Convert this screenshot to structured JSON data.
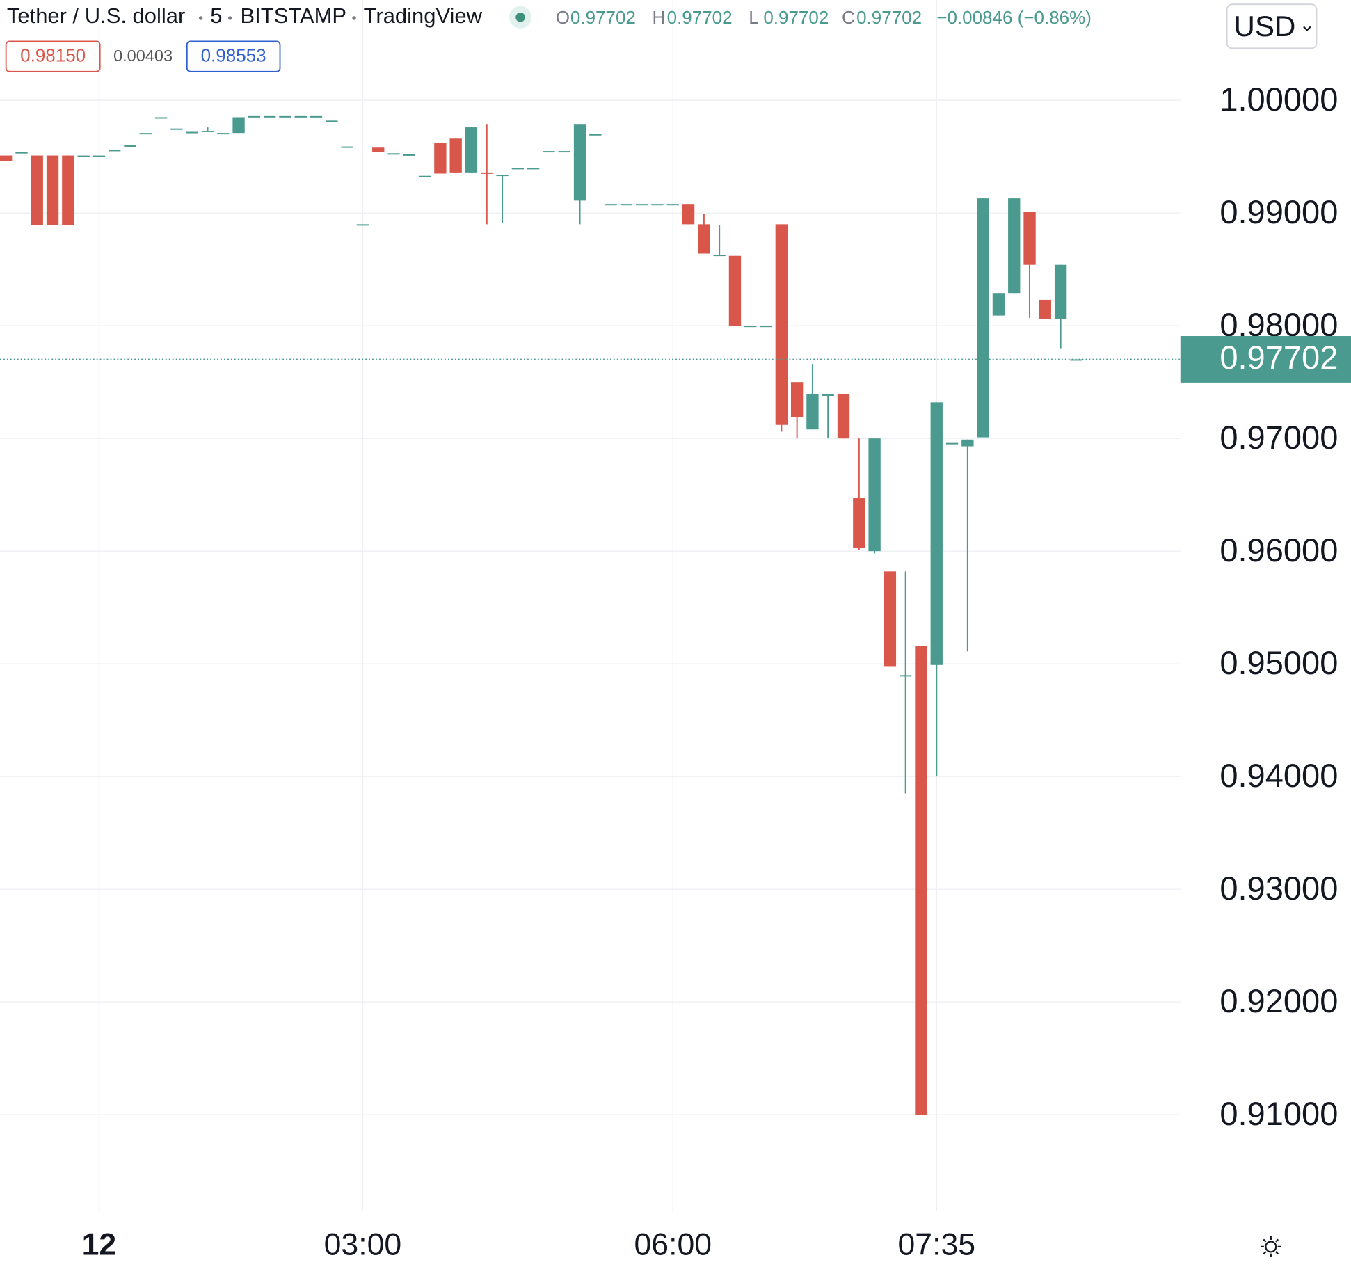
{
  "chart_data": {
    "type": "candlestick",
    "title": "Tether / U.S. dollar",
    "interval": "5",
    "exchange": "BITSTAMP",
    "source": "TradingView",
    "ohlc": [
      {
        "label": "O",
        "value": 0.97702
      },
      {
        "label": "H",
        "value": 0.97702
      },
      {
        "label": "L",
        "value": 0.97702
      },
      {
        "label": "C",
        "value": 0.97702
      }
    ],
    "change": "−0.00846 (−0.86%)",
    "sell": "0.98150",
    "spread": "0.00403",
    "buy": "0.98553",
    "currency": "USD",
    "last_price": 0.97702,
    "up_color": "#4a9a8f",
    "down_color": "#d9574a",
    "grid": true,
    "ylim": [
      0.9015,
      1.0089
    ],
    "yticks": [
      {
        "value": 1,
        "label": "1.00000"
      },
      {
        "value": 0.99,
        "label": "0.99000"
      },
      {
        "value": 0.98,
        "label": "0.98000"
      },
      {
        "value": 0.97,
        "label": "0.97000"
      },
      {
        "value": 0.96,
        "label": "0.96000"
      },
      {
        "value": 0.95,
        "label": "0.95000"
      },
      {
        "value": 0.94,
        "label": "0.94000"
      },
      {
        "value": 0.93,
        "label": "0.93000"
      },
      {
        "value": 0.92,
        "label": "0.92000"
      },
      {
        "value": 0.91,
        "label": "0.91000"
      }
    ],
    "categories": [
      null,
      null,
      null,
      null,
      null,
      null,
      "12",
      null,
      null,
      null,
      null,
      null,
      null,
      null,
      null,
      null,
      null,
      null,
      null,
      null,
      null,
      null,
      null,
      "03:00",
      null,
      null,
      null,
      null,
      null,
      null,
      null,
      null,
      null,
      null,
      null,
      null,
      null,
      null,
      null,
      null,
      null,
      null,
      null,
      "06:00",
      null,
      null,
      null,
      null,
      null,
      null,
      null,
      null,
      null,
      null,
      null,
      null,
      null,
      null,
      null,
      null,
      "07:35",
      null,
      null,
      null,
      null,
      null,
      null,
      null,
      null,
      null
    ],
    "open": [
      0.9951,
      0.9954,
      0.9951,
      0.9951,
      0.9951,
      0.9951,
      0.9951,
      0.9956,
      0.996,
      0.9971,
      0.9985,
      0.9975,
      0.9972,
      0.9973,
      0.9971,
      0.9971,
      0.9986,
      0.9986,
      0.9986,
      0.9986,
      0.9986,
      0.9982,
      0.9959,
      0.989,
      0.9958,
      0.9953,
      0.9952,
      0.9933,
      0.9962,
      0.9966,
      0.9936,
      0.9936,
      0.9934,
      0.994,
      0.994,
      0.9955,
      0.9955,
      0.9911,
      0.997,
      0.9908,
      0.9908,
      0.9908,
      0.9908,
      0.9908,
      0.9908,
      0.989,
      0.9863,
      0.9862,
      0.98,
      0.98,
      0.989,
      0.975,
      0.9708,
      0.9739,
      0.9739,
      0.9647,
      0.96,
      0.9582,
      0.949,
      0.9516,
      0.9499,
      0.9696,
      0.9693,
      0.9701,
      0.9809,
      0.9829,
      0.9901,
      0.9823,
      0.9806,
      0.97702
    ],
    "high": [
      0.9951,
      0.9954,
      0.9951,
      0.9951,
      0.9951,
      0.9951,
      0.9951,
      0.9956,
      0.996,
      0.9971,
      0.9985,
      0.9975,
      0.9972,
      0.9976,
      0.9971,
      0.9985,
      0.9986,
      0.9986,
      0.9986,
      0.9986,
      0.9986,
      0.9982,
      0.9959,
      0.989,
      0.9958,
      0.9953,
      0.9952,
      0.9933,
      0.9962,
      0.9966,
      0.9976,
      0.9979,
      0.9934,
      0.994,
      0.994,
      0.9955,
      0.9955,
      0.9979,
      0.997,
      0.9908,
      0.9908,
      0.9908,
      0.9908,
      0.9908,
      0.9908,
      0.9899,
      0.9889,
      0.9862,
      0.98,
      0.98,
      0.989,
      0.975,
      0.9766,
      0.9739,
      0.9739,
      0.97,
      0.97,
      0.9582,
      0.9582,
      0.9516,
      0.9732,
      0.9696,
      0.9699,
      0.9913,
      0.9829,
      0.9913,
      0.9901,
      0.9823,
      0.9854,
      0.97702
    ],
    "low": [
      0.9946,
      0.9954,
      0.9889,
      0.9889,
      0.9889,
      0.9951,
      0.9951,
      0.9956,
      0.996,
      0.9971,
      0.9985,
      0.9975,
      0.9972,
      0.9973,
      0.9971,
      0.9971,
      0.9986,
      0.9986,
      0.9986,
      0.9986,
      0.9986,
      0.9982,
      0.9959,
      0.989,
      0.9954,
      0.9953,
      0.9952,
      0.9933,
      0.9935,
      0.9936,
      0.9936,
      0.989,
      0.9891,
      0.994,
      0.994,
      0.9955,
      0.9955,
      0.989,
      0.997,
      0.9908,
      0.9908,
      0.9908,
      0.9908,
      0.9908,
      0.989,
      0.9864,
      0.9862,
      0.98,
      0.98,
      0.98,
      0.9706,
      0.97,
      0.9708,
      0.97,
      0.97,
      0.9601,
      0.9598,
      0.9498,
      0.9385,
      0.91,
      0.94,
      0.9696,
      0.9511,
      0.9701,
      0.9809,
      0.9829,
      0.9807,
      0.9806,
      0.978,
      0.97702
    ],
    "close": [
      0.9946,
      0.9954,
      0.9889,
      0.9889,
      0.9889,
      0.9951,
      0.9951,
      0.9956,
      0.996,
      0.9971,
      0.9985,
      0.9975,
      0.9972,
      0.9973,
      0.9971,
      0.9985,
      0.9986,
      0.9986,
      0.9986,
      0.9986,
      0.9986,
      0.9982,
      0.9959,
      0.989,
      0.9954,
      0.9953,
      0.9952,
      0.9933,
      0.9935,
      0.9936,
      0.9976,
      0.9935,
      0.9934,
      0.994,
      0.994,
      0.9955,
      0.9955,
      0.9979,
      0.997,
      0.9908,
      0.9908,
      0.9908,
      0.9908,
      0.9908,
      0.989,
      0.9864,
      0.9863,
      0.98,
      0.98,
      0.98,
      0.9712,
      0.9719,
      0.9739,
      0.9739,
      0.97,
      0.9603,
      0.97,
      0.9498,
      0.949,
      0.91,
      0.9732,
      0.9696,
      0.9699,
      0.9913,
      0.9829,
      0.9913,
      0.9854,
      0.9806,
      0.9854,
      0.97702
    ]
  }
}
